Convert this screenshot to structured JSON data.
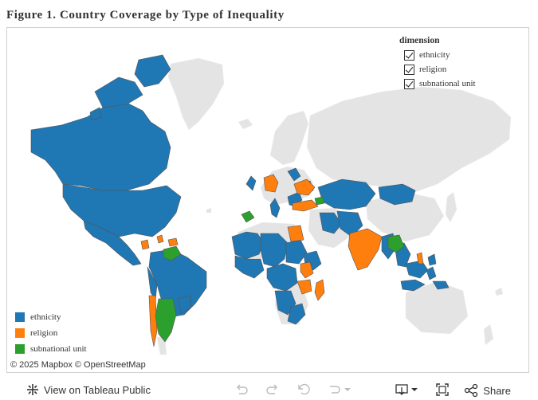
{
  "title": "Figure 1. Country Coverage by Type of Inequality",
  "filter": {
    "title": "dimension",
    "items": [
      "ethnicity",
      "religion",
      "subnational unit"
    ]
  },
  "legend": [
    {
      "label": "ethnicity",
      "color": "#1f77b4"
    },
    {
      "label": "religion",
      "color": "#ff7f0e"
    },
    {
      "label": "subnational unit",
      "color": "#2ca02c"
    }
  ],
  "attribution": "© 2025 Mapbox  © OpenStreetMap",
  "toolbar": {
    "view_label": "View on Tableau Public",
    "share_label": "Share",
    "icons": [
      "undo-icon",
      "redo-icon",
      "revert-icon",
      "pause-icon",
      "download-icon",
      "fullscreen-icon",
      "share-icon"
    ]
  },
  "colors": {
    "base_land": "#e4e4e4",
    "border": "#555555"
  }
}
